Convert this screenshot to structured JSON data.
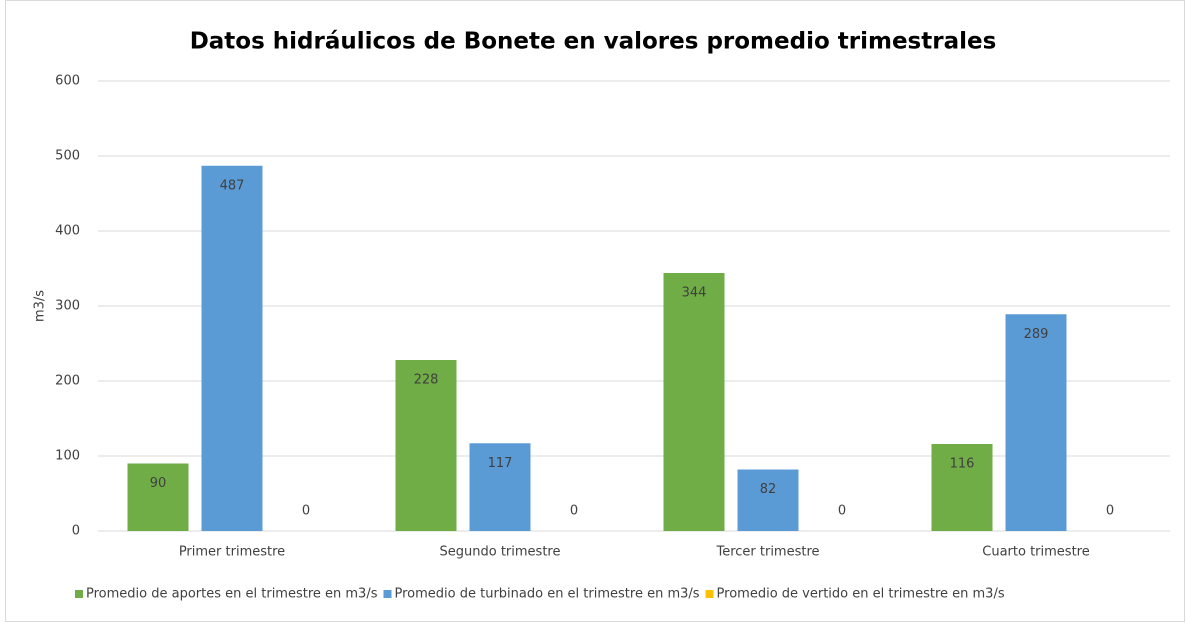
{
  "chart_data": {
    "type": "bar",
    "title": "Datos hidráulicos de Bonete en valores promedio trimestrales",
    "y_label": "m3/s",
    "categories": [
      "Primer trimestre",
      "Segundo trimestre",
      "Tercer trimestre",
      "Cuarto trimestre"
    ],
    "series": [
      {
        "name": "Promedio de aportes en el trimestre en m3/s",
        "color": "#70ad47",
        "values": [
          90,
          228,
          344,
          116
        ]
      },
      {
        "name": "Promedio de turbinado en el trimestre en m3/s",
        "color": "#5b9bd5",
        "values": [
          487,
          117,
          82,
          289
        ]
      },
      {
        "name": "Promedio de vertido en el trimestre en m3/s",
        "color": "#ffc000",
        "values": [
          0,
          0,
          0,
          0
        ]
      }
    ],
    "ylim": [
      0,
      600
    ],
    "yticks": [
      0,
      100,
      200,
      300,
      400,
      500,
      600
    ],
    "grid": true,
    "legend": "bottom"
  }
}
